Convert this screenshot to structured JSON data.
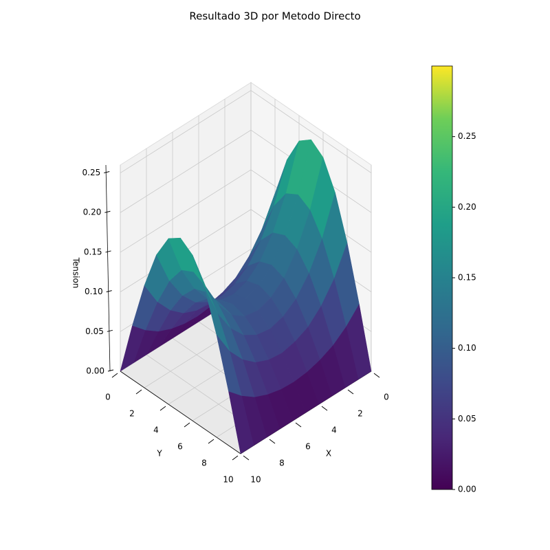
{
  "chart_data": {
    "type": "surface",
    "title": "Resultado 3D por Metodo Directo",
    "xlabel": "X",
    "ylabel": "Y",
    "zlabel": "Tension",
    "colormap": "viridis",
    "x": [
      0,
      1,
      2,
      3,
      4,
      5,
      6,
      7,
      8,
      9,
      10
    ],
    "y": [
      0,
      1,
      2,
      3,
      4,
      5,
      6,
      7,
      8,
      9,
      10
    ],
    "z": [
      [
        0,
        0,
        0,
        0,
        0,
        0,
        0,
        0,
        0,
        0,
        0
      ],
      [
        0.074,
        0.056,
        0.043,
        0.035,
        0.03,
        0.028,
        0.029,
        0.033,
        0.04,
        0.052,
        0.068
      ],
      [
        0.141,
        0.106,
        0.082,
        0.066,
        0.058,
        0.054,
        0.056,
        0.063,
        0.077,
        0.098,
        0.129
      ],
      [
        0.194,
        0.146,
        0.113,
        0.091,
        0.079,
        0.074,
        0.077,
        0.087,
        0.106,
        0.135,
        0.178
      ],
      [
        0.228,
        0.172,
        0.133,
        0.107,
        0.093,
        0.087,
        0.09,
        0.102,
        0.125,
        0.159,
        0.209
      ],
      [
        0.24,
        0.181,
        0.14,
        0.113,
        0.098,
        0.092,
        0.095,
        0.107,
        0.131,
        0.167,
        0.22
      ],
      [
        0.228,
        0.172,
        0.133,
        0.107,
        0.093,
        0.087,
        0.09,
        0.102,
        0.125,
        0.159,
        0.209
      ],
      [
        0.194,
        0.146,
        0.113,
        0.091,
        0.079,
        0.074,
        0.077,
        0.087,
        0.106,
        0.135,
        0.178
      ],
      [
        0.141,
        0.106,
        0.082,
        0.066,
        0.058,
        0.054,
        0.056,
        0.063,
        0.077,
        0.098,
        0.129
      ],
      [
        0.074,
        0.056,
        0.043,
        0.035,
        0.03,
        0.028,
        0.029,
        0.033,
        0.04,
        0.052,
        0.068
      ],
      [
        0,
        0,
        0,
        0,
        0,
        0,
        0,
        0,
        0,
        0,
        0
      ]
    ],
    "xlim": [
      0,
      10
    ],
    "ylim": [
      0,
      10
    ],
    "zlim": [
      0,
      0.26
    ],
    "xticks": [
      0,
      2,
      4,
      6,
      8,
      10
    ],
    "yticks": [
      0,
      2,
      4,
      6,
      8,
      10
    ],
    "zticks": [
      {
        "value": 0,
        "label": "0.00"
      },
      0.05,
      {
        "value": 0.1,
        "label": "0.10"
      },
      0.15,
      {
        "value": 0.2,
        "label": "0.20"
      },
      0.25
    ],
    "clim": [
      0,
      0.3
    ],
    "colorbar_ticks": [
      {
        "value": 0,
        "label": "0.00"
      },
      0.05,
      {
        "value": 0.1,
        "label": "0.10"
      },
      0.15,
      {
        "value": 0.2,
        "label": "0.20"
      },
      0.25
    ],
    "grid": true
  }
}
